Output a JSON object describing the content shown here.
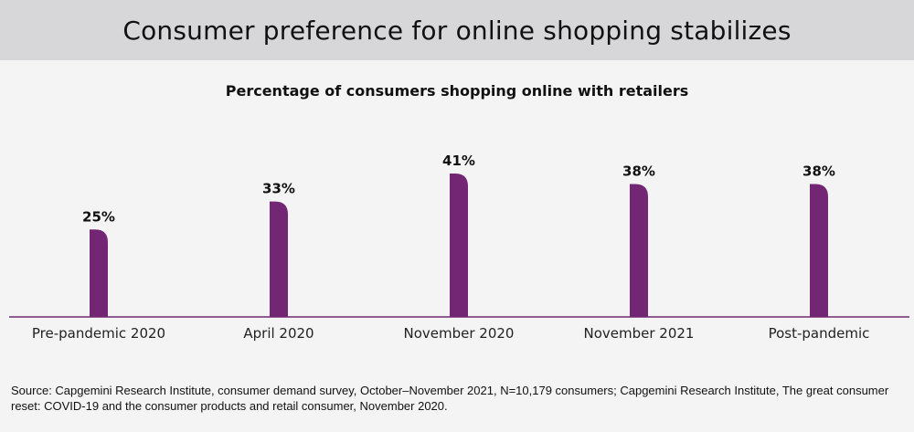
{
  "header": {
    "title": "Consumer preference for online shopping stabilizes"
  },
  "colors": {
    "bar": "#722674",
    "header_bg": "#d7d7da",
    "background": "#f4f4f5",
    "axis": "#6e2a72"
  },
  "chart_data": {
    "type": "bar",
    "title": "Percentage of consumers shopping online with retailers",
    "xlabel": "",
    "ylabel": "",
    "categories": [
      "Pre-pandemic 2020",
      "April 2020",
      "November 2020",
      "November 2021",
      "Post-pandemic"
    ],
    "values": [
      25,
      33,
      41,
      38,
      38
    ],
    "value_labels": [
      "25%",
      "33%",
      "41%",
      "38%",
      "38%"
    ],
    "unit": "%",
    "ylim": [
      0,
      41
    ],
    "grid": false,
    "legend": "none"
  },
  "footer": {
    "source": "Source: Capgemini Research Institute, consumer demand survey, October–November 2021, N=10,179 consumers; Capgemini Research Institute, The great consumer reset: COVID-19 and the consumer products and retail consumer, November 2020."
  }
}
